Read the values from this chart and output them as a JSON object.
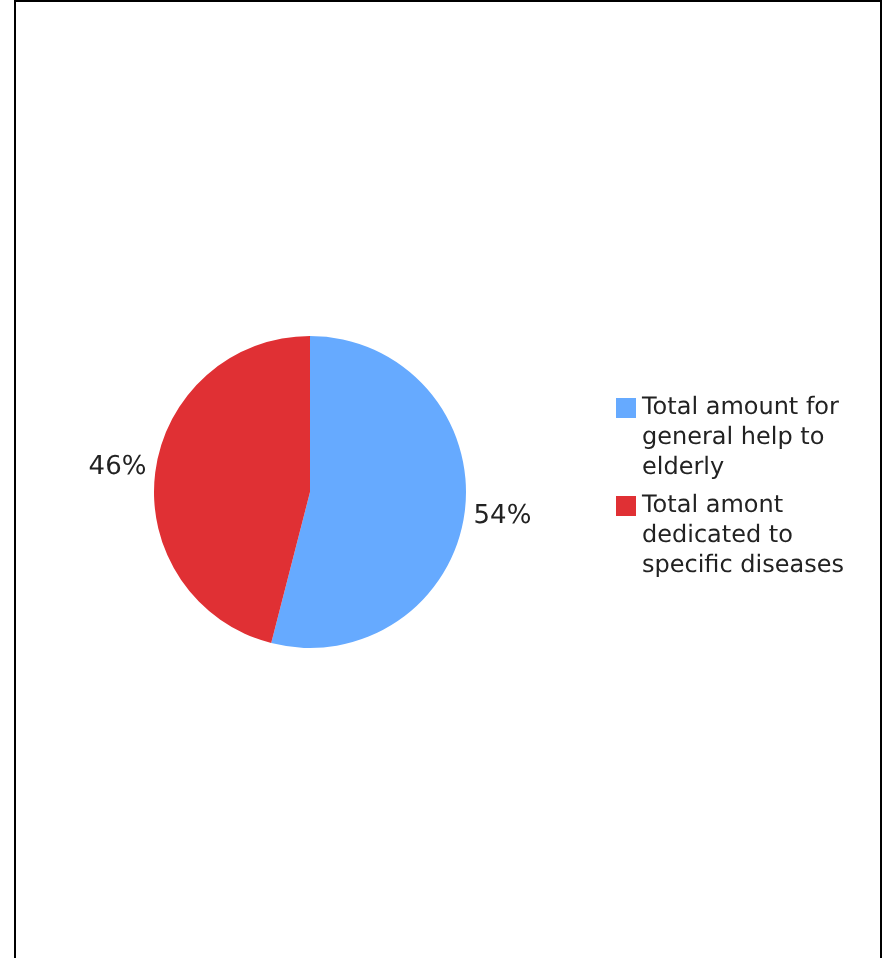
{
  "chart_data": {
    "type": "pie",
    "categories": [
      "Total amount for general help to elderly",
      "Total amont dedicated to specific diseases"
    ],
    "values": [
      54,
      46
    ],
    "colors": [
      "#66aaff",
      "#e03034"
    ],
    "value_labels": [
      "54%",
      "46%"
    ],
    "legend": "right"
  }
}
